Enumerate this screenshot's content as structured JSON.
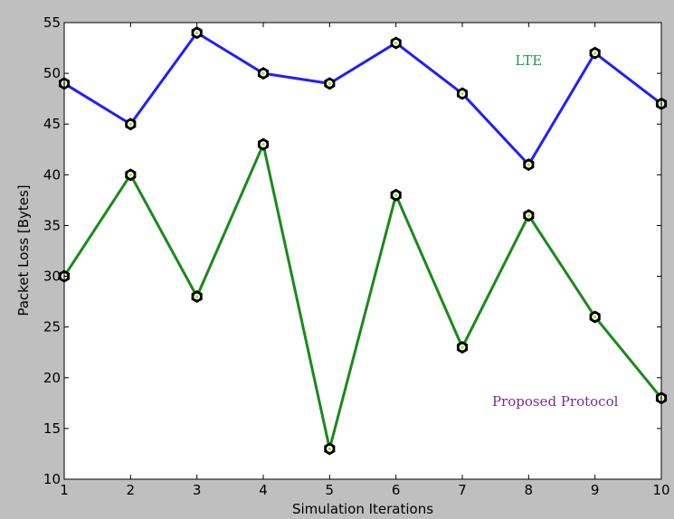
{
  "chart_data": {
    "type": "line",
    "title": "",
    "xlabel": "Simulation Iterations",
    "ylabel": "Packet Loss [Bytes]",
    "xlim": [
      1,
      10
    ],
    "ylim": [
      10,
      55
    ],
    "xticks": [
      1,
      2,
      3,
      4,
      5,
      6,
      7,
      8,
      9,
      10
    ],
    "yticks": [
      10,
      15,
      20,
      25,
      30,
      35,
      40,
      45,
      50,
      55
    ],
    "grid": false,
    "x": [
      1,
      2,
      3,
      4,
      5,
      6,
      7,
      8,
      9,
      10
    ],
    "series": [
      {
        "name": "LTE",
        "color": "#1f1fff",
        "values": [
          49,
          45,
          54,
          50,
          49,
          53,
          48,
          41,
          52,
          47
        ]
      },
      {
        "name": "Proposed Protocol",
        "color": "#1a8a1a",
        "values": [
          30,
          40,
          28,
          43,
          13,
          38,
          23,
          36,
          26,
          18
        ]
      }
    ],
    "annotations": [
      {
        "text": "LTE",
        "x": 8.0,
        "y": 50.8,
        "color": "#1a9a4a"
      },
      {
        "text": "Proposed Protocol",
        "x": 8.4,
        "y": 17.2,
        "color": "#7a2a9a"
      }
    ],
    "marker": {
      "shape": "hexagon",
      "edge_color": "#000000",
      "center_color": "#7fff00"
    }
  }
}
